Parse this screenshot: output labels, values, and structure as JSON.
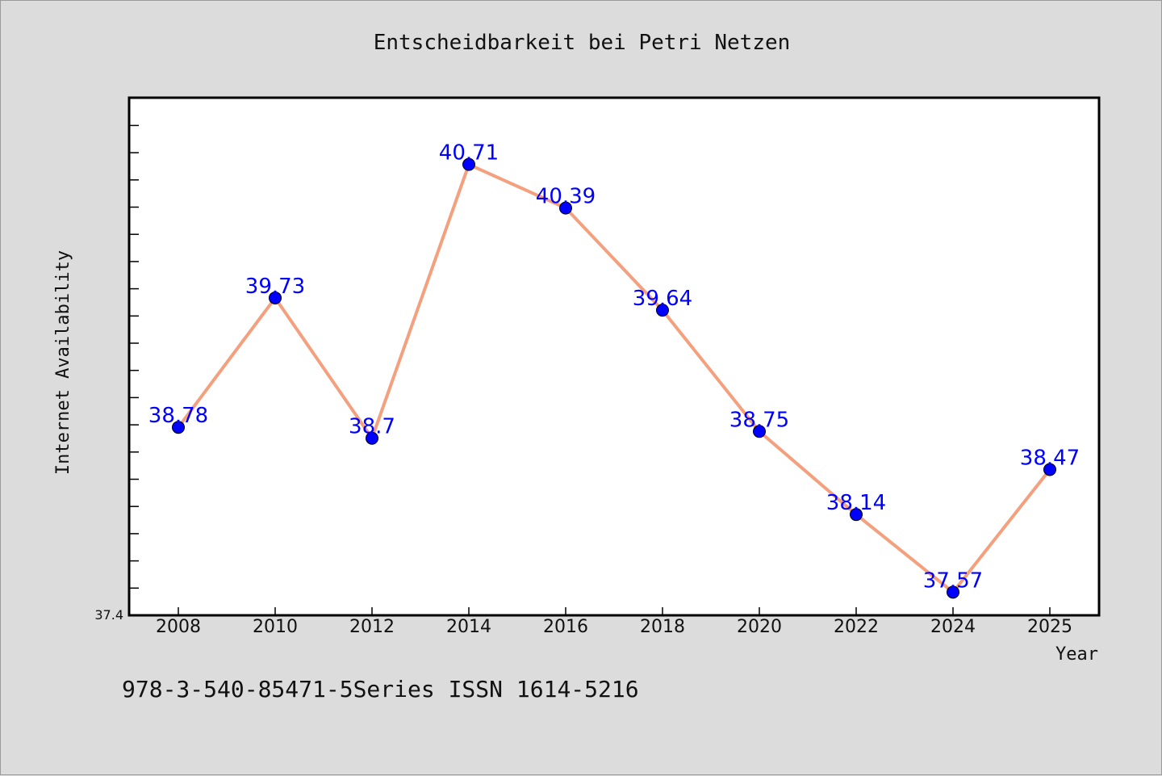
{
  "chart_data": {
    "type": "line",
    "title": "Entscheidbarkeit bei Petri Netzen",
    "xlabel": "Year",
    "ylabel": "Internet Availability",
    "x": [
      "2008",
      "2010",
      "2012",
      "2014",
      "2016",
      "2018",
      "2020",
      "2022",
      "2024",
      "2025"
    ],
    "series": [
      {
        "values": [
          38.78,
          39.73,
          38.7,
          40.71,
          40.39,
          39.64,
          38.75,
          38.14,
          37.57,
          38.47
        ],
        "labels": [
          "38.78",
          "39.73",
          "38.7",
          "40.71",
          "40.39",
          "39.64",
          "38.75",
          "38.14",
          "37.57",
          "38.47"
        ]
      }
    ],
    "ylim": [
      37.4,
      41.2
    ],
    "ytick_labels": [
      "37.4"
    ],
    "grid": false,
    "line_color": "#f4a07e",
    "marker_color": "#0000ff",
    "label_color": "#0000ff",
    "plot_background": "#ffffff",
    "figure_background": "#dcdcdc"
  },
  "footer": {
    "text": "978-3-540-85471-5Series ISSN 1614-5216"
  }
}
